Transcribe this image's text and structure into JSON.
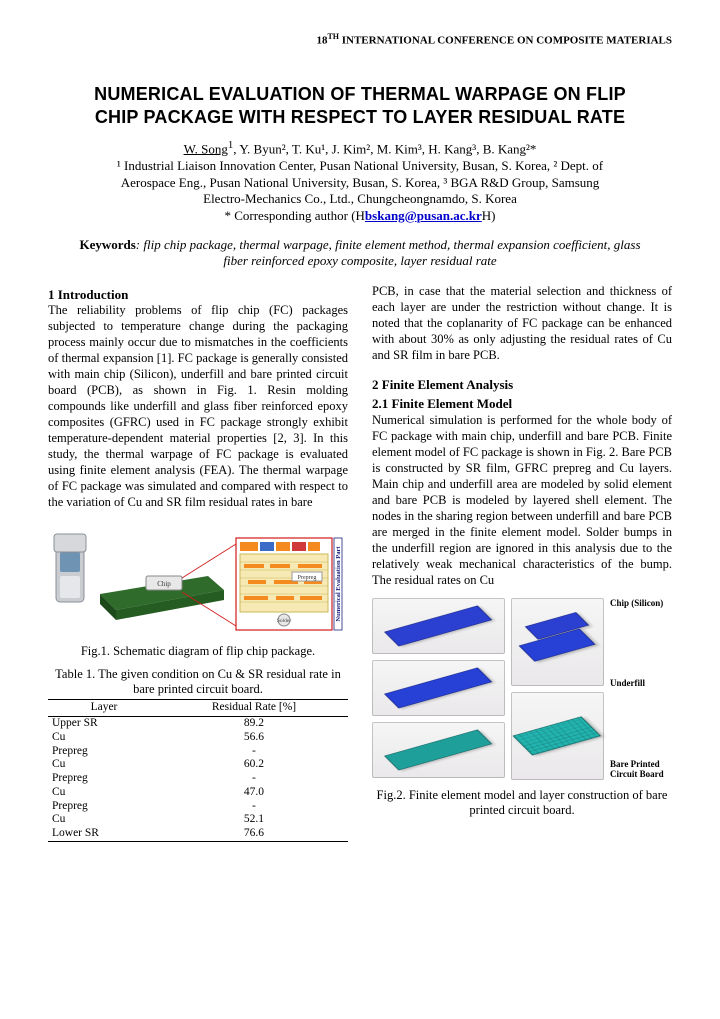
{
  "header": {
    "conference": "18",
    "conference_suffix": "TH",
    "conference_rest": " INTERNATIONAL CONFERENCE ON COMPOSITE MATERIALS"
  },
  "title_line1": "NUMERICAL EVALUATION OF THERMAL WARPAGE ON FLIP",
  "title_line2": "CHIP PACKAGE WITH RESPECT TO LAYER RESIDUAL RATE",
  "authors": {
    "lead": "W. Song",
    "lead_sup": "1",
    "rest": ", Y. Byun², T. Ku¹, J. Kim², M. Kim³, H. Kang³, B. Kang²*"
  },
  "affil1": "¹ Industrial Liaison Innovation Center, Pusan National University, Busan, S. Korea, ² Dept. of",
  "affil2": "Aerospace Eng., Pusan National University, Busan, S. Korea, ³ BGA R&D Group, Samsung",
  "affil3": "Electro-Mechanics Co., Ltd., Chungcheongnamdo, S. Korea",
  "corr_prefix": "* Corresponding author (H",
  "corr_email": "bskang@pusan.ac.kr",
  "corr_suffix": "H)",
  "keywords_label": "Keywords",
  "keywords_text": ": flip chip package, thermal warpage, finite element method, thermal expansion coefficient, glass fiber reinforced epoxy composite, layer residual rate",
  "sec1_head": "1 Introduction",
  "sec1_body": "The reliability problems of flip chip (FC) packages subjected to temperature change during the packaging process mainly occur due to mismatches in the coefficients of thermal expansion [1]. FC package is generally consisted with main chip (Silicon), underfill and bare printed circuit board (PCB), as shown in Fig. 1. Resin molding compounds like underfill and glass fiber reinforced epoxy composites (GFRC) used in FC package strongly exhibit temperature-dependent material properties [2, 3]. In this study, the thermal warpage of FC package is evaluated using finite element analysis (FEA). The thermal warpage of FC package was simulated and compared with respect to the variation of Cu and SR film residual rates in bare",
  "fig1_caption": "Fig.1. Schematic diagram of flip chip package.",
  "table1_caption": "Table 1. The given condition on Cu & SR residual rate in bare printed circuit board.",
  "table1": {
    "columns": [
      "Layer",
      "Residual Rate [%]"
    ],
    "rows": [
      [
        "Upper SR",
        "89.2"
      ],
      [
        "Cu",
        "56.6"
      ],
      [
        "Prepreg",
        "-"
      ],
      [
        "Cu",
        "60.2"
      ],
      [
        "Prepreg",
        "-"
      ],
      [
        "Cu",
        "47.0"
      ],
      [
        "Prepreg",
        "-"
      ],
      [
        "Cu",
        "52.1"
      ],
      [
        "Lower SR",
        "76.6"
      ]
    ]
  },
  "col2_p1": "PCB, in case that the material selection and thickness of each layer are under the restriction without change. It is noted that the coplanarity of FC package can be enhanced with about 30% as only adjusting the residual rates of Cu and SR film in bare PCB.",
  "sec2_head": "2 Finite Element Analysis",
  "sec21_head": "2.1 Finite Element Model",
  "sec21_body": "Numerical simulation is performed for the whole body of FC package with main chip, underfill and bare PCB. Finite element model of FC package is shown in Fig. 2. Bare PCB is constructed by SR film, GFRC prepreg and Cu layers. Main chip and underfill area are modeled by solid element and bare PCB is modeled by layered shell element. The nodes in the sharing region between underfill and bare PCB are merged in the finite element model. Solder bumps in the underfill region are ignored in this analysis due to the relatively weak mechanical characteristics of the bump. The residual rates on Cu",
  "fig2_caption": "Fig.2. Finite element model and layer construction of bare printed circuit board.",
  "fig2": {
    "panel_colors": [
      "#2b3fd1",
      "#2740d6",
      "#1e9f9a",
      "#22b3ae"
    ],
    "panel_bg": "#ece9ed",
    "labels": [
      "Chip (Silicon)",
      "Underfill",
      "Bare Printed Circuit Board"
    ]
  },
  "fig1": {
    "phone_color": "#9da4ad",
    "board_color": "#2f6b2a",
    "chip_label": "Chip",
    "tags": [
      "Epoxy",
      "Pkg.",
      "PSR",
      "ABF",
      "Cu"
    ],
    "tag_colors": [
      "#f58a1f",
      "#f58a1f",
      "#f58a1f",
      "#f58a1f",
      "#f58a1f"
    ],
    "prepreg_label": "Prepreg",
    "solder_label": "Solder",
    "side_label": "Numerical Evaluation Part",
    "outline_color": "#d11a1a",
    "cross_bg": "#f6e9b3"
  }
}
